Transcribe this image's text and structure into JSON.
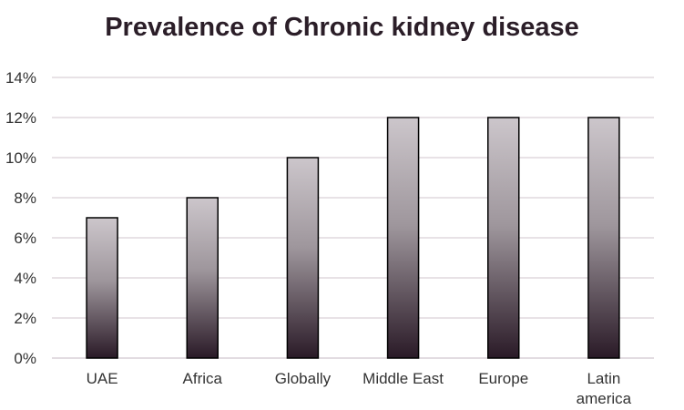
{
  "chart_data": {
    "type": "bar",
    "title": "Prevalence of Chronic kidney disease",
    "categories": [
      "UAE",
      "Africa",
      "Globally",
      "Middle East",
      "Europe",
      "Latin america"
    ],
    "category_lines": [
      [
        "UAE"
      ],
      [
        "Africa"
      ],
      [
        "Globally"
      ],
      [
        "Middle East"
      ],
      [
        "Europe"
      ],
      [
        "Latin",
        "america"
      ]
    ],
    "values": [
      7,
      8,
      10,
      12,
      12,
      12
    ],
    "y_unit": "%",
    "ylim": [
      0,
      14
    ],
    "yticks": [
      0,
      2,
      4,
      6,
      8,
      10,
      12,
      14
    ],
    "ytick_labels": [
      "0%",
      "2%",
      "4%",
      "6%",
      "8%",
      "10%",
      "12%",
      "14%"
    ],
    "grid": true,
    "legend": "none",
    "colors": {
      "bar_top": "#ccc6cb",
      "bar_bottom": "#2a1a27",
      "bar_outline": "#000000",
      "grid": "#d9d0d7",
      "title": "#2b1e28"
    }
  }
}
